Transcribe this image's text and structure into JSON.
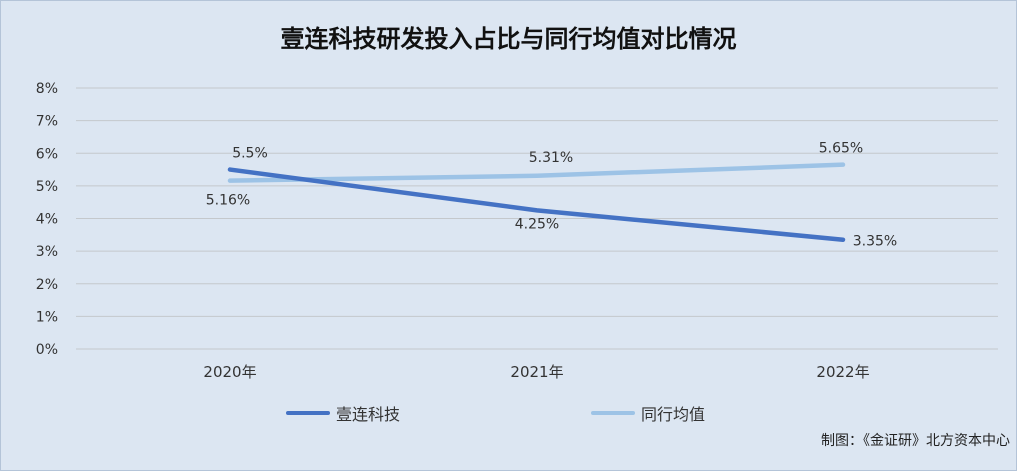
{
  "title": "壹连科技研发投入占比与同行均值对比情况",
  "source": "制图：《金证研》北方资本中心",
  "chart_data": {
    "type": "line",
    "categories": [
      "2020年",
      "2021年",
      "2022年"
    ],
    "yticks": [
      "0%",
      "1%",
      "2%",
      "3%",
      "4%",
      "5%",
      "6%",
      "7%",
      "8%"
    ],
    "ylim": [
      0,
      8
    ],
    "grid": true,
    "legend_position": "bottom",
    "series": [
      {
        "name": "壹连科技",
        "values": [
          5.5,
          4.25,
          3.35
        ],
        "labels": [
          "5.5%",
          "4.25%",
          "3.35%"
        ],
        "color": "#4472c4"
      },
      {
        "name": "同行均值",
        "values": [
          5.16,
          5.31,
          5.65
        ],
        "labels": [
          "5.16%",
          "5.31%",
          "5.65%"
        ],
        "color": "#9dc3e6"
      }
    ]
  }
}
